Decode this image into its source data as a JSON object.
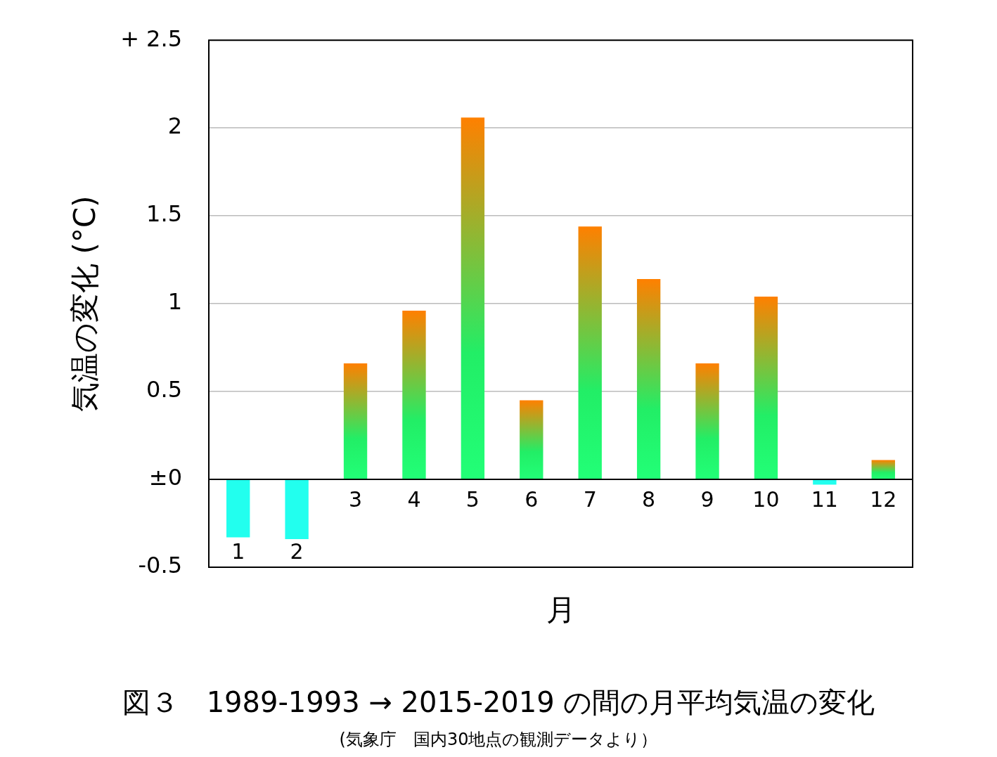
{
  "chart_data": {
    "type": "bar",
    "title": "図３　1989-1993 → 2015-2019 の間の月平均気温の変化",
    "xlabel": "月",
    "ylabel": "気温の変化 (°C)",
    "annotations": [
      "(気象庁　国内30地点の観測データより）"
    ],
    "categories": [
      "1",
      "2",
      "3",
      "4",
      "5",
      "6",
      "7",
      "8",
      "9",
      "10",
      "11",
      "12"
    ],
    "values": [
      -0.33,
      -0.34,
      0.66,
      0.96,
      2.06,
      0.45,
      1.44,
      1.14,
      0.66,
      1.04,
      -0.03,
      0.11
    ],
    "colors": [
      "#22ffee",
      "#22ffee",
      "#ff8000",
      "#ff8000",
      "#ff8000",
      "#ff8000",
      "#ff8000",
      "#ff8000",
      "#ff8000",
      "#ff8000",
      "#22ffee",
      "#ff8000"
    ],
    "ylim": [
      -0.5,
      2.5
    ],
    "yticks": [
      {
        "value": -0.5,
        "label": "-0.5"
      },
      {
        "value": 0,
        "label": "±0"
      },
      {
        "value": 0.5,
        "label": "0.5"
      },
      {
        "value": 1,
        "label": "1"
      },
      {
        "value": 1.5,
        "label": "1.5"
      },
      {
        "value": 2,
        "label": "2"
      },
      {
        "value": 2.5,
        "label": "+ 2.5"
      }
    ],
    "grid": "y",
    "legend": false
  }
}
